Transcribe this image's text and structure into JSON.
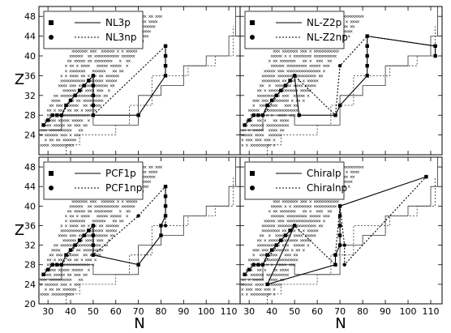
{
  "chart_data": {
    "type": "scatter",
    "shared_axes": {
      "xlabel": "N",
      "ylabel": "Z",
      "xlim": [
        26,
        115
      ],
      "ylim_top": [
        20,
        50
      ],
      "ylim_bottom": [
        20,
        50
      ],
      "x_ticks": [
        "30",
        "40",
        "50",
        "60",
        "70",
        "80",
        "90",
        "100",
        "110"
      ],
      "y_ticks_top": [
        "24",
        "28",
        "32",
        "36",
        "40",
        "44",
        "48"
      ],
      "y_ticks_bottom": [
        "20",
        "24",
        "28",
        "32",
        "36",
        "40",
        "44",
        "48"
      ]
    },
    "panels": [
      {
        "id": "nl3",
        "legend": [
          {
            "label": "NL3p",
            "marker": "square",
            "line": "solid"
          },
          {
            "label": "NL3np",
            "marker": "circle",
            "line": "dotted"
          }
        ],
        "series": [
          {
            "label": "NL3p",
            "marker": "square",
            "line": "solid",
            "points": [
              [
                28,
                26
              ],
              [
                30,
                27
              ],
              [
                32,
                28
              ],
              [
                34,
                28
              ],
              [
                36,
                28
              ],
              [
                38,
                30
              ],
              [
                40,
                31
              ],
              [
                42,
                32
              ],
              [
                44,
                33
              ],
              [
                46,
                34
              ],
              [
                48,
                35
              ],
              [
                50,
                36
              ],
              [
                50,
                34
              ],
              [
                50,
                32
              ],
              [
                50,
                30
              ],
              [
                50,
                28
              ],
              [
                70,
                28
              ],
              [
                82,
                36
              ],
              [
                82,
                38
              ],
              [
                82,
                40
              ],
              [
                82,
                42
              ]
            ]
          },
          {
            "label": "NL3np",
            "marker": "circle",
            "line": "dotted",
            "points": [
              [
                28,
                26
              ],
              [
                30,
                27
              ],
              [
                32,
                28
              ],
              [
                36,
                28
              ],
              [
                40,
                31
              ],
              [
                44,
                33
              ],
              [
                48,
                35
              ],
              [
                50,
                36
              ],
              [
                50,
                28
              ],
              [
                82,
                42
              ],
              [
                82,
                40
              ],
              [
                82,
                38
              ]
            ]
          }
        ]
      },
      {
        "id": "nlz2",
        "legend": [
          {
            "label": "NL-Z2p",
            "marker": "square",
            "line": "solid"
          },
          {
            "label": "NL-Z2np",
            "marker": "circle",
            "line": "dotted"
          }
        ],
        "series": [
          {
            "label": "NL-Z2p",
            "marker": "square",
            "line": "solid",
            "points": [
              [
                28,
                26
              ],
              [
                30,
                27
              ],
              [
                32,
                28
              ],
              [
                34,
                28
              ],
              [
                36,
                28
              ],
              [
                38,
                30
              ],
              [
                40,
                31
              ],
              [
                42,
                32
              ],
              [
                44,
                33
              ],
              [
                46,
                34
              ],
              [
                48,
                35
              ],
              [
                50,
                36
              ],
              [
                52,
                28
              ],
              [
                68,
                28
              ],
              [
                70,
                30
              ],
              [
                82,
                36
              ],
              [
                82,
                38
              ],
              [
                82,
                40
              ],
              [
                82,
                42
              ],
              [
                82,
                44
              ],
              [
                112,
                42
              ],
              [
                112,
                40
              ]
            ]
          },
          {
            "label": "NL-Z2np",
            "marker": "circle",
            "line": "dotted",
            "points": [
              [
                28,
                26
              ],
              [
                32,
                28
              ],
              [
                36,
                28
              ],
              [
                44,
                33
              ],
              [
                50,
                36
              ],
              [
                68,
                28
              ],
              [
                70,
                38
              ],
              [
                82,
                44
              ],
              [
                112,
                42
              ],
              [
                112,
                40
              ]
            ]
          }
        ]
      },
      {
        "id": "pcf1",
        "legend": [
          {
            "label": "PCF1p",
            "marker": "square",
            "line": "solid"
          },
          {
            "label": "PCF1np",
            "marker": "circle",
            "line": "dotted"
          }
        ],
        "series": [
          {
            "label": "PCF1p",
            "marker": "square",
            "line": "solid",
            "points": [
              [
                28,
                26
              ],
              [
                30,
                27
              ],
              [
                32,
                28
              ],
              [
                34,
                28
              ],
              [
                36,
                28
              ],
              [
                38,
                30
              ],
              [
                40,
                31
              ],
              [
                42,
                32
              ],
              [
                44,
                33
              ],
              [
                46,
                34
              ],
              [
                48,
                35
              ],
              [
                50,
                36
              ],
              [
                50,
                34
              ],
              [
                50,
                32
              ],
              [
                50,
                30
              ],
              [
                70,
                28
              ],
              [
                80,
                34
              ],
              [
                80,
                36
              ],
              [
                82,
                38
              ],
              [
                82,
                40
              ],
              [
                82,
                42
              ],
              [
                82,
                44
              ]
            ]
          },
          {
            "label": "PCF1np",
            "marker": "circle",
            "line": "dotted",
            "points": [
              [
                28,
                26
              ],
              [
                32,
                28
              ],
              [
                36,
                28
              ],
              [
                44,
                33
              ],
              [
                50,
                36
              ],
              [
                50,
                30
              ],
              [
                70,
                38
              ],
              [
                82,
                44
              ],
              [
                82,
                40
              ],
              [
                82,
                36
              ]
            ]
          }
        ]
      },
      {
        "id": "chiral",
        "legend": [
          {
            "label": "Chiralp",
            "marker": "square",
            "line": "solid"
          },
          {
            "label": "Chiralnp",
            "marker": "circle",
            "line": "dotted"
          }
        ],
        "series": [
          {
            "label": "Chiralp",
            "marker": "square",
            "line": "solid",
            "points": [
              [
                28,
                26
              ],
              [
                30,
                27
              ],
              [
                32,
                28
              ],
              [
                34,
                28
              ],
              [
                36,
                28
              ],
              [
                38,
                30
              ],
              [
                40,
                31
              ],
              [
                42,
                32
              ],
              [
                44,
                33
              ],
              [
                46,
                34
              ],
              [
                48,
                35
              ],
              [
                50,
                36
              ],
              [
                38,
                24
              ],
              [
                68,
                28
              ],
              [
                68,
                30
              ],
              [
                70,
                32
              ],
              [
                70,
                34
              ],
              [
                70,
                36
              ],
              [
                70,
                38
              ],
              [
                70,
                40
              ],
              [
                108,
                46
              ]
            ]
          },
          {
            "label": "Chiralnp",
            "marker": "circle",
            "line": "dotted",
            "points": [
              [
                28,
                26
              ],
              [
                32,
                28
              ],
              [
                36,
                28
              ],
              [
                44,
                33
              ],
              [
                50,
                36
              ],
              [
                68,
                28
              ],
              [
                68,
                30
              ],
              [
                70,
                40
              ],
              [
                72,
                32
              ],
              [
                72,
                28
              ],
              [
                108,
                46
              ]
            ]
          }
        ]
      }
    ]
  }
}
